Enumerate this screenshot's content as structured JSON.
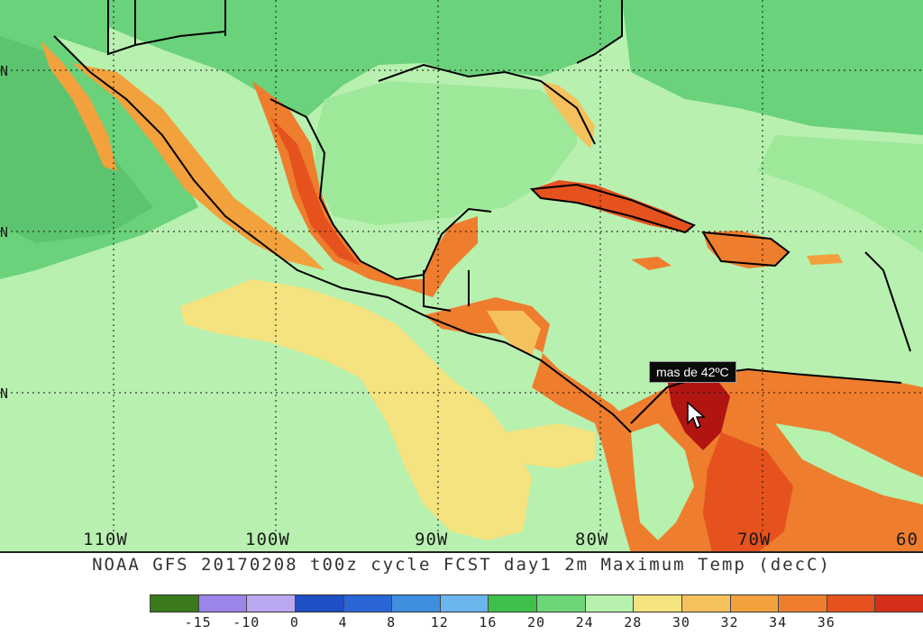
{
  "map": {
    "title": "NOAA GFS 20170208 t00z cycle FCST day1 2m Maximum Temp (decC)",
    "longitude_labels": [
      "110W",
      "100W",
      "90W",
      "80W",
      "70W",
      "60"
    ],
    "latitude_labels": [
      "N",
      "N",
      "N"
    ],
    "tooltip": "mas de 42ºC",
    "colors": {
      "ocean_light": "#b8f0b0",
      "land_green": "#6ad27a",
      "land_mid_green": "#9ee89a",
      "yellow": "#f5dc7c",
      "orange": "#f2a13c",
      "red_orange": "#e8582a",
      "dark_red": "#b01512",
      "blue": "#3b67d8"
    }
  },
  "legend": {
    "colors": [
      "#3b7a1a",
      "#9b85e8",
      "#b9a8f0",
      "#1f4fc6",
      "#2a66d6",
      "#3f8ee0",
      "#6bb6ee",
      "#3fc04b",
      "#6dd677",
      "#b6f1ad",
      "#f4e37e",
      "#f5c15c",
      "#f2a13c",
      "#ee7d2d",
      "#e6521e",
      "#d43019"
    ],
    "ticks": [
      "-15",
      "-10",
      "0",
      "4",
      "8",
      "12",
      "16",
      "20",
      "24",
      "28",
      "30",
      "32",
      "34",
      "36"
    ]
  }
}
